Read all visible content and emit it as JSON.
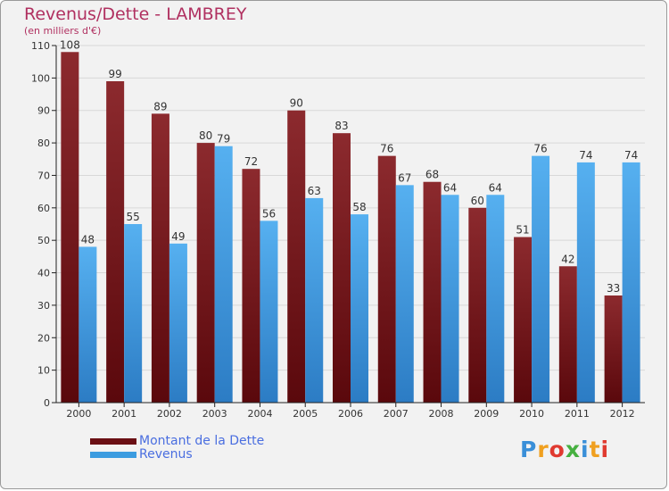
{
  "chart_data": {
    "type": "bar",
    "title": "Revenus/Dette - LAMBREY",
    "subtitle": "(en milliers d'€)",
    "xlabel": "",
    "ylabel": "",
    "ylim": [
      0,
      110
    ],
    "yticks": [
      0,
      10,
      20,
      30,
      40,
      50,
      60,
      70,
      80,
      90,
      100,
      110
    ],
    "grid": true,
    "legend_position": "bottom-left",
    "categories": [
      "2000",
      "2001",
      "2002",
      "2003",
      "2004",
      "2005",
      "2006",
      "2007",
      "2008",
      "2009",
      "2010",
      "2011",
      "2012"
    ],
    "series": [
      {
        "name": "Montant de la Dette",
        "color": "#7a1a1e",
        "values": [
          108,
          99,
          89,
          80,
          72,
          90,
          83,
          76,
          68,
          60,
          51,
          42,
          33
        ]
      },
      {
        "name": "Revenus",
        "color": "#3c9ce0",
        "values": [
          48,
          55,
          49,
          79,
          56,
          63,
          58,
          67,
          64,
          64,
          76,
          74,
          74
        ]
      }
    ]
  },
  "watermark": {
    "text": "Proxiti",
    "letter_colors": [
      "#3a8fd8",
      "#f0a020",
      "#e03a30",
      "#46b040",
      "#3a8fd8",
      "#f0a020",
      "#e03a30"
    ]
  }
}
